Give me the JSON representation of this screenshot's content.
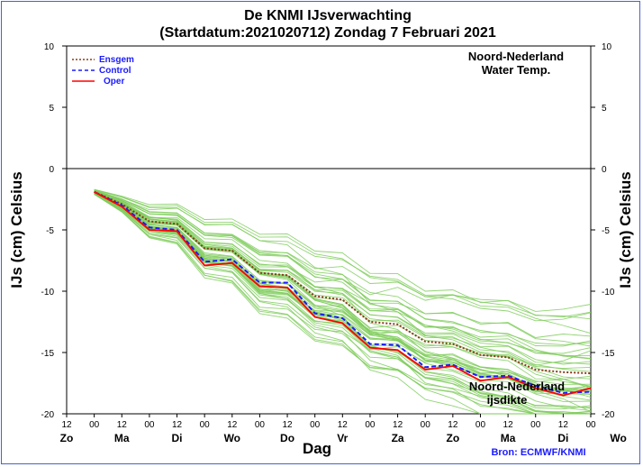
{
  "title": {
    "line1": "De KNMI IJsverwachting",
    "line2": "(Startdatum:2021020712)  Zondag  7 Februari 2021"
  },
  "annotation_top": {
    "line1": "Noord-Nederland",
    "line2": "Water Temp."
  },
  "annotation_bottom": {
    "line1": "Noord-Nederland",
    "line2": "ijsdikte"
  },
  "source": "Bron: ECMWF/KNMI",
  "colors": {
    "ensemble": "#7fcc5c",
    "ensgem": "#8b3a1a",
    "control": "#1a1aff",
    "oper": "#ff0000",
    "legend_text": "#1a1aff",
    "frame": "#4a62c6"
  },
  "chart_data": {
    "type": "line",
    "xlabel": "Dag",
    "ylabel_left": "IJs (cm)  Celsius",
    "ylabel_right": "IJs (cm)  Celsius",
    "ylim": [
      -20,
      10
    ],
    "y_ticks": [
      10,
      5,
      0,
      -5,
      -10,
      -15,
      -20
    ],
    "x_range_hours": [
      -12,
      216
    ],
    "hour_ticks": [
      "12",
      "00",
      "12",
      "00",
      "12",
      "00",
      "12",
      "00",
      "12",
      "00",
      "12",
      "00",
      "12",
      "00",
      "12",
      "00",
      "12",
      "00",
      "12",
      "00"
    ],
    "day_labels": [
      "Zo",
      "Ma",
      "Di",
      "Wo",
      "Do",
      "Vr",
      "Za",
      "Zo",
      "Ma",
      "Di",
      "Wo"
    ],
    "grid": false,
    "reference_line": 0,
    "legend_position": "top-left",
    "legend": [
      {
        "name": "Ensgem",
        "style": "dotted"
      },
      {
        "name": "Control",
        "style": "dashed"
      },
      {
        "name": "Oper",
        "style": "solid"
      }
    ],
    "x_hours": [
      0,
      12,
      24,
      36,
      48,
      60,
      72,
      84,
      96,
      108,
      120,
      132,
      144,
      156,
      168,
      180,
      192,
      204,
      216
    ],
    "series": [
      {
        "name": "Ensgem",
        "values": [
          -1.9,
          -2.9,
          -4.3,
          -4.5,
          -6.5,
          -6.7,
          -8.5,
          -8.7,
          -10.4,
          -10.7,
          -12.5,
          -12.7,
          -14.1,
          -14.3,
          -15.2,
          -15.4,
          -16.4,
          -16.6,
          -16.7
        ]
      },
      {
        "name": "Control",
        "values": [
          -1.9,
          -3.0,
          -4.8,
          -5.0,
          -7.6,
          -7.4,
          -9.3,
          -9.3,
          -11.8,
          -12.2,
          -14.3,
          -14.4,
          -16.2,
          -16.0,
          -17.0,
          -16.9,
          -17.7,
          -18.3,
          -18.2
        ]
      },
      {
        "name": "Oper",
        "values": [
          -1.9,
          -3.1,
          -5.0,
          -5.1,
          -7.9,
          -7.7,
          -9.6,
          -9.7,
          -12.1,
          -12.6,
          -14.6,
          -14.8,
          -16.4,
          -16.1,
          -17.3,
          -17.0,
          -17.9,
          -18.5,
          -17.9
        ]
      }
    ],
    "ensemble": {
      "members": 50,
      "mean": [
        -1.9,
        -2.9,
        -4.3,
        -4.5,
        -6.5,
        -6.7,
        -8.5,
        -8.7,
        -10.4,
        -10.7,
        -12.5,
        -12.7,
        -14.1,
        -14.3,
        -15.2,
        -15.4,
        -16.4,
        -16.6,
        -16.7
      ],
      "spread": [
        0.1,
        0.3,
        0.6,
        0.7,
        1.0,
        1.1,
        1.4,
        1.5,
        1.7,
        1.8,
        2.0,
        2.1,
        2.2,
        2.3,
        2.4,
        2.5,
        2.5,
        2.6,
        2.7
      ]
    }
  }
}
